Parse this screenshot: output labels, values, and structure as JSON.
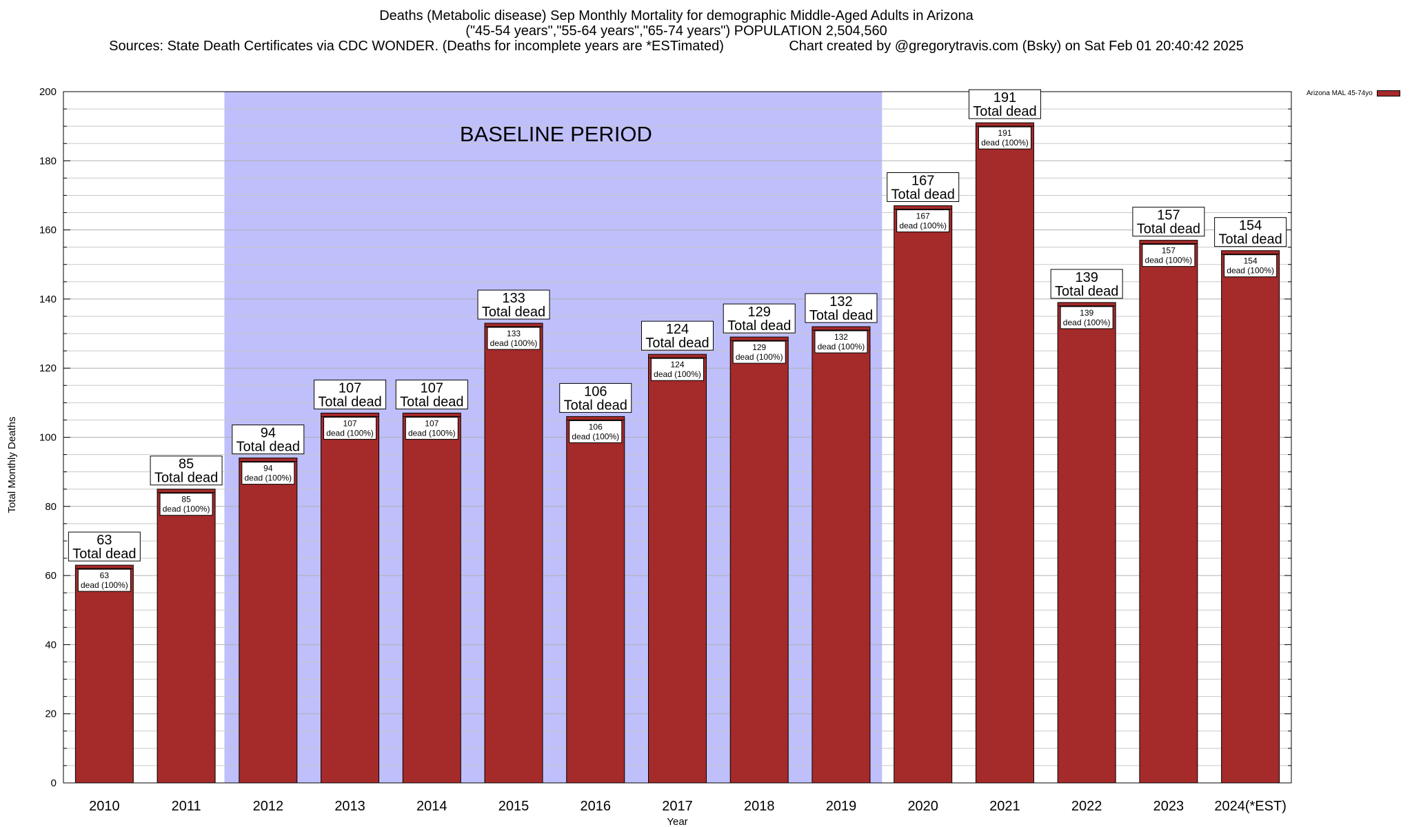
{
  "title": {
    "line1": "Deaths (Metabolic disease) Sep Monthly Mortality for demographic Middle-Aged Adults in Arizona",
    "line2": "(\"45-54 years\",\"55-64 years\",\"65-74 years\") POPULATION 2,504,560",
    "line3": "Sources: State Death Certificates via CDC WONDER. (Deaths for incomplete years are *ESTimated)                 Chart created by @gregorytravis.com (Bsky) on Sat Feb 01 20:40:42 2025"
  },
  "legend": {
    "label": "Arizona MAL 45-74yo"
  },
  "colors": {
    "bar": "#a52a2a",
    "baseline": "#bfbffb",
    "grid": "#c8c8c8"
  },
  "chart_data": {
    "type": "bar",
    "xlabel": "Year",
    "ylabel": "Total Monthly Deaths",
    "ylim": [
      0,
      200
    ],
    "yticks": [
      0,
      20,
      40,
      60,
      80,
      100,
      120,
      140,
      160,
      180,
      200
    ],
    "grid": true,
    "legend_position": "top-right",
    "categories": [
      "2010",
      "2011",
      "2012",
      "2013",
      "2014",
      "2015",
      "2016",
      "2017",
      "2018",
      "2019",
      "2020",
      "2021",
      "2022",
      "2023",
      "2024(*EST)"
    ],
    "series": [
      {
        "name": "Arizona MAL 45-74yo",
        "values": [
          63,
          85,
          94,
          107,
          107,
          133,
          106,
          124,
          129,
          132,
          167,
          191,
          139,
          157,
          154
        ]
      }
    ],
    "total_label": "Total dead",
    "inner_label": "dead (100%)",
    "annotation": {
      "text": "BASELINE PERIOD",
      "from": "2012",
      "to": "2019"
    }
  }
}
